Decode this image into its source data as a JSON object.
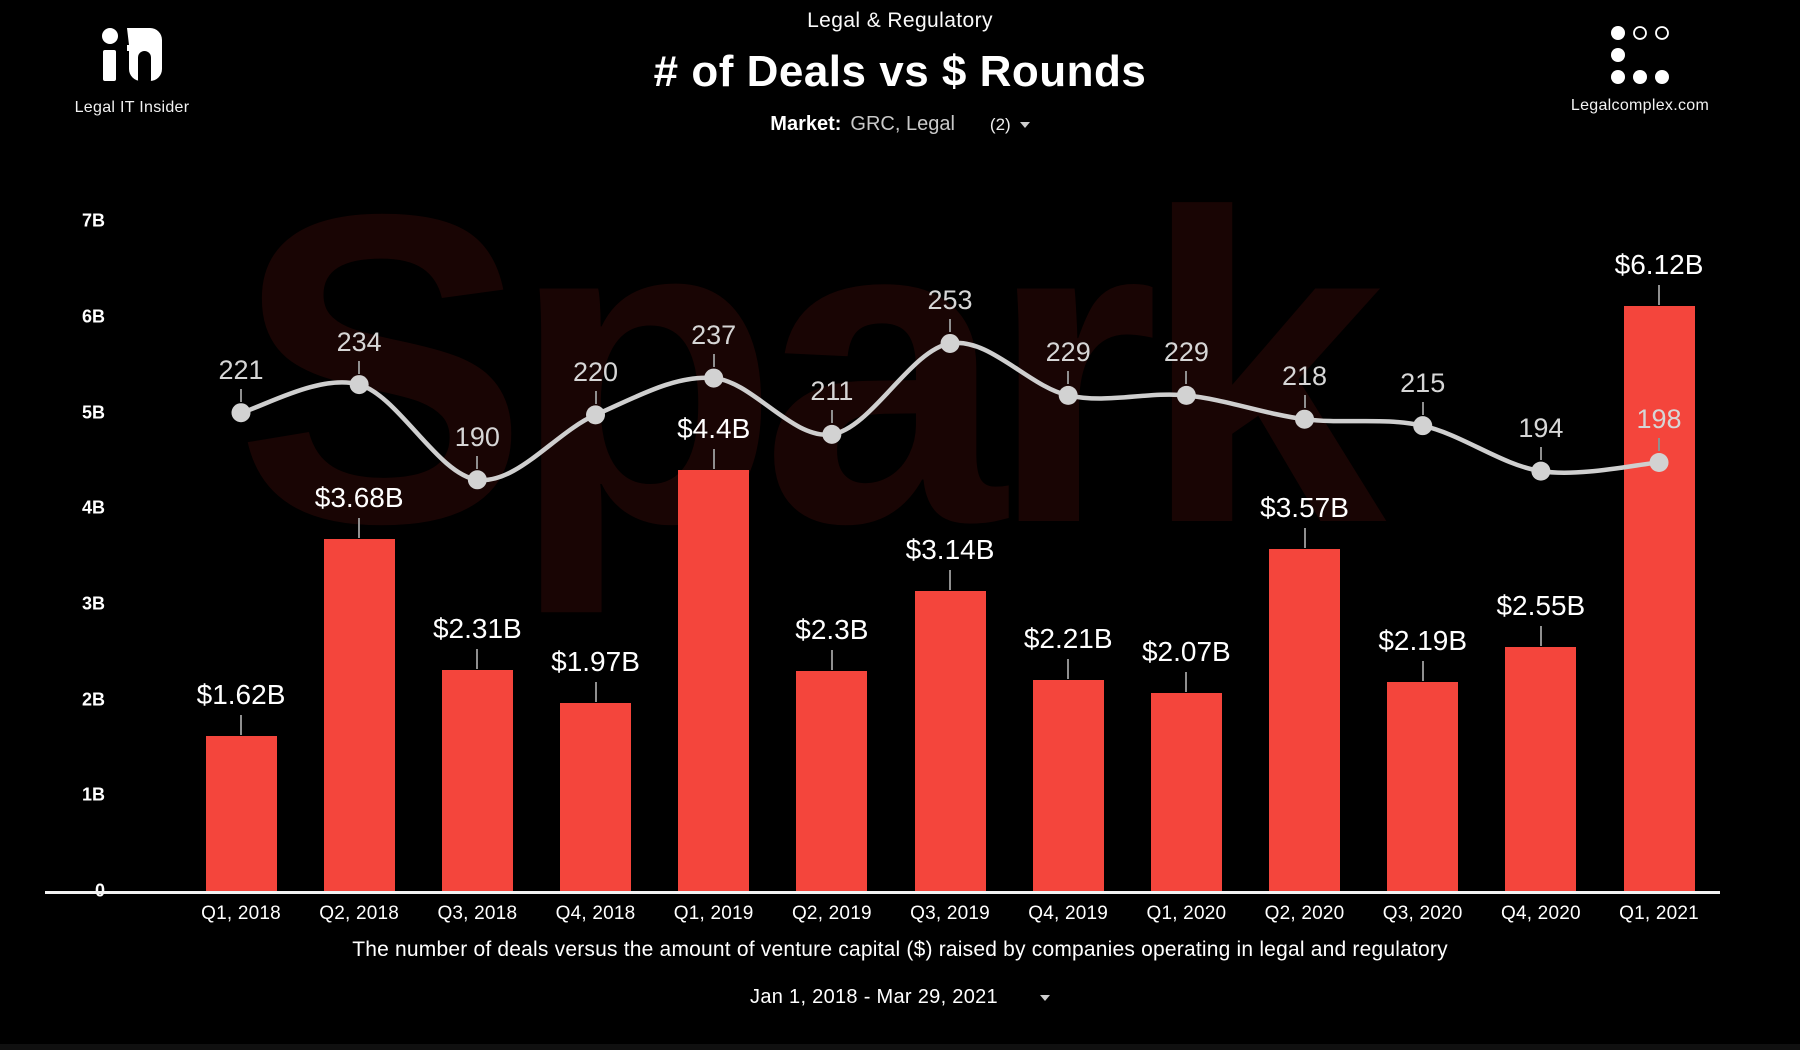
{
  "header": {
    "left_logo": {
      "brand": "it",
      "label": "Legal IT Insider"
    },
    "subtitle": "Legal & Regulatory",
    "market": {
      "label": "Market:",
      "value": "GRC, Legal",
      "count": "(2)"
    },
    "right_logo": {
      "label": "Legalcomplex.com"
    }
  },
  "watermark": "Spark",
  "chart_data": {
    "type": "combo",
    "title": "# of Deals vs $ Rounds",
    "categories": [
      "Q1, 2018",
      "Q2, 2018",
      "Q3, 2018",
      "Q4, 2018",
      "Q1, 2019",
      "Q2, 2019",
      "Q3, 2019",
      "Q4, 2019",
      "Q1, 2020",
      "Q2, 2020",
      "Q3, 2020",
      "Q4, 2020",
      "Q1, 2021"
    ],
    "series": [
      {
        "name": "$ Rounds",
        "type": "bar",
        "color": "#f4453c",
        "unit": "USD billions",
        "values": [
          1.62,
          3.68,
          2.31,
          1.97,
          4.4,
          2.3,
          3.14,
          2.21,
          2.07,
          3.57,
          2.19,
          2.55,
          6.12
        ],
        "labels": [
          "$1.62B",
          "$3.68B",
          "$2.31B",
          "$1.97B",
          "$4.4B",
          "$2.3B",
          "$3.14B",
          "$2.21B",
          "$2.07B",
          "$3.57B",
          "$2.19B",
          "$2.55B",
          "$6.12B"
        ]
      },
      {
        "name": "# of Deals",
        "type": "line",
        "color": "#cfcfcf",
        "values": [
          221,
          234,
          190,
          220,
          237,
          211,
          253,
          229,
          229,
          218,
          215,
          194,
          198
        ],
        "labels": [
          "221",
          "234",
          "190",
          "220",
          "237",
          "211",
          "253",
          "229",
          "229",
          "218",
          "215",
          "194",
          "198"
        ]
      }
    ],
    "y_ticks": [
      "0",
      "1B",
      "2B",
      "3B",
      "4B",
      "5B",
      "6B",
      "7B"
    ],
    "ylim": [
      0,
      7
    ],
    "grid": "off",
    "legend": "none",
    "line_axis_note": "deal-count line plotted at 44.2 deals per 1B of the left axis"
  },
  "footer": {
    "description": "The number of deals versus the amount of venture capital ($) raised by companies operating in legal and regulatory",
    "date_range": "Jan 1, 2018 - Mar 29, 2021"
  }
}
